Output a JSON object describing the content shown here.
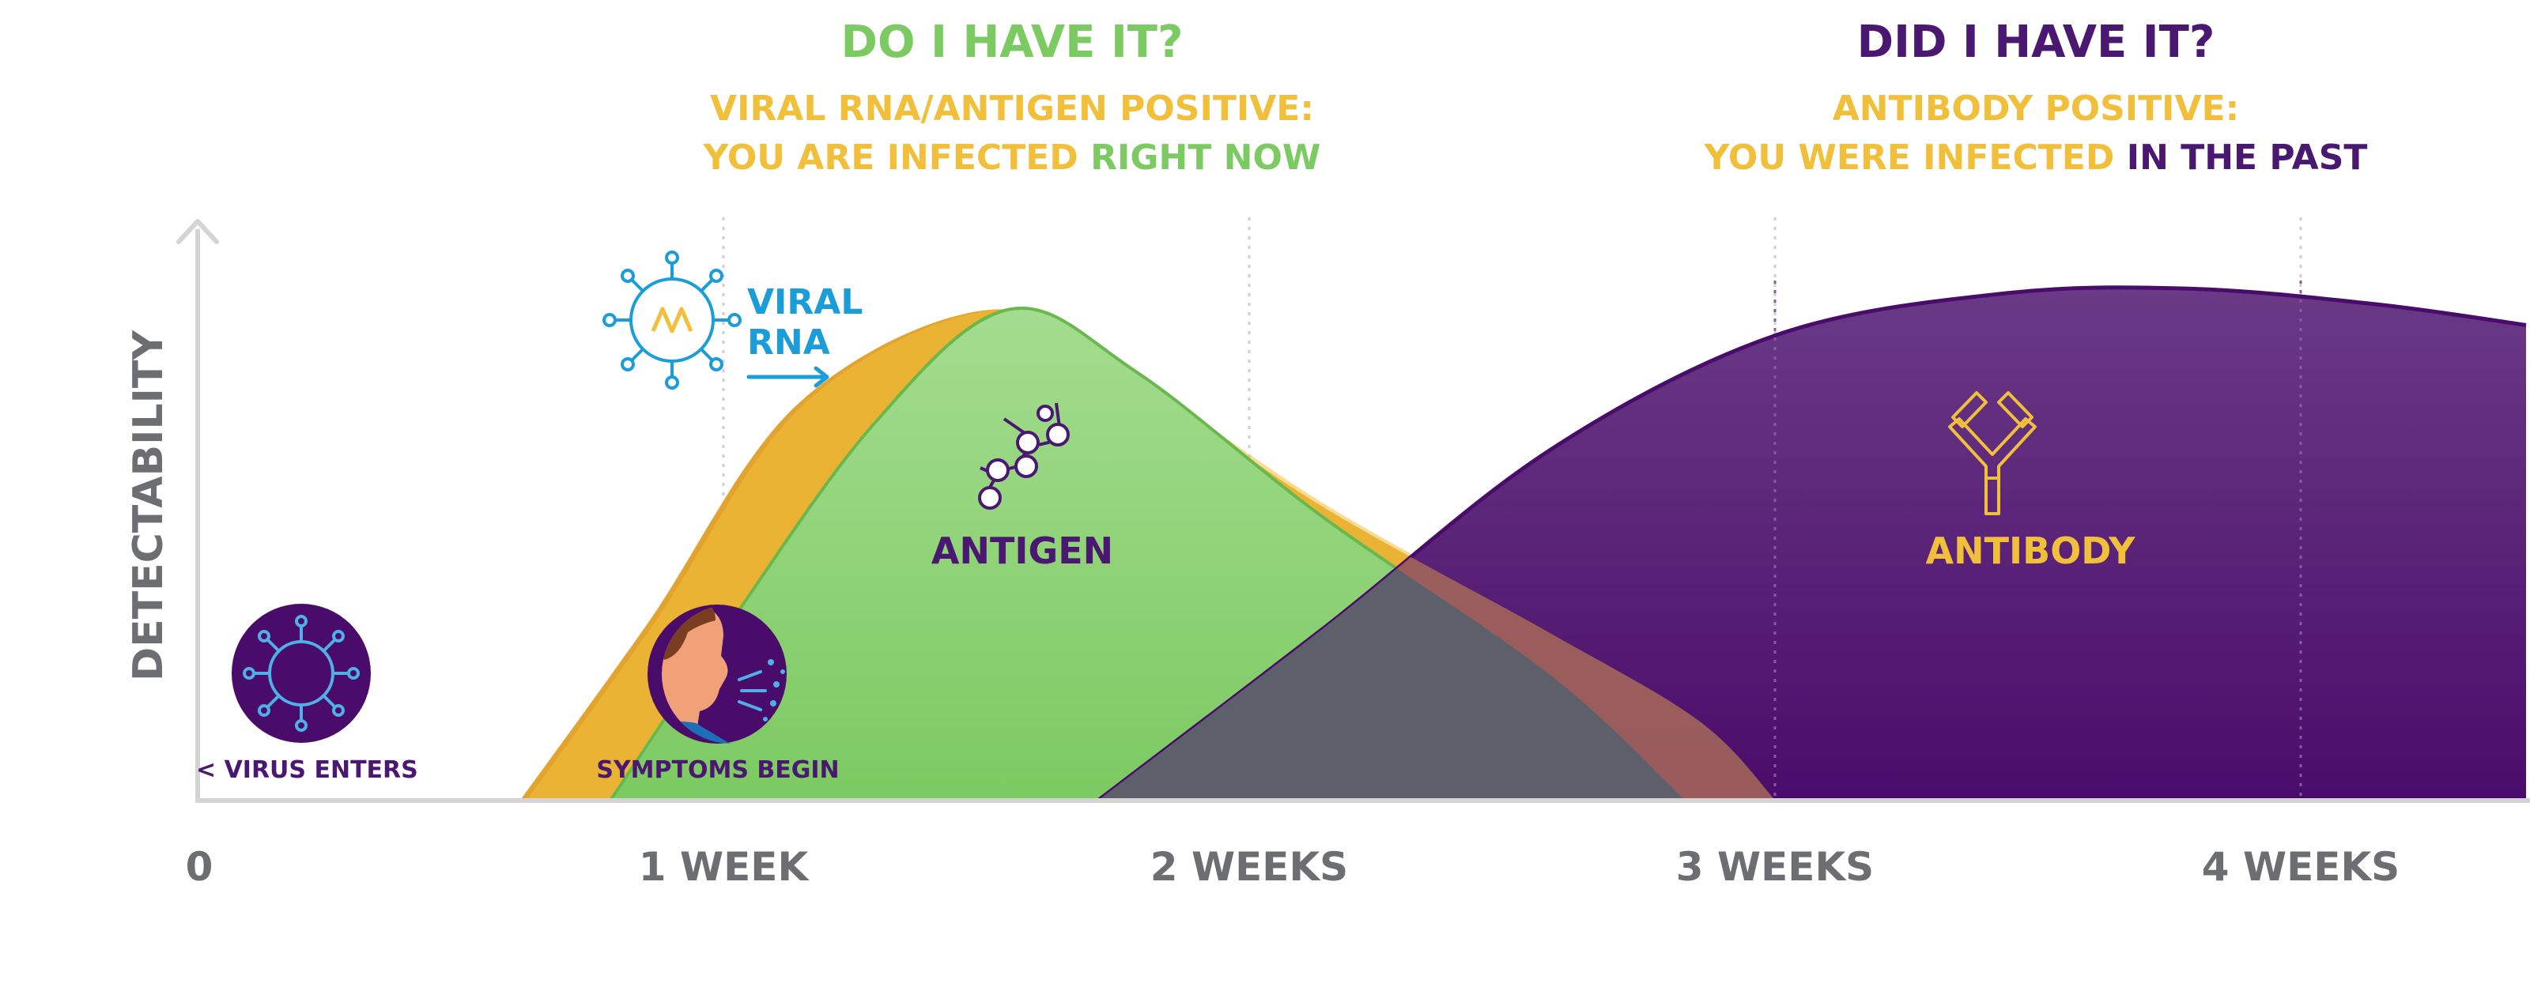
{
  "colors": {
    "green": "#7cca62",
    "green_light": "#a4dc8f",
    "green_edge": "#68b84e",
    "yellow": "#f2bf3a",
    "yellow_dark": "#e2a42e",
    "purple": "#4a0c6a",
    "purple_light": "#6a3a86",
    "purple_text": "#4a1870",
    "blue": "#1b9dd9",
    "gray_axis": "#d4d4d4",
    "gray_text": "#6d6e71",
    "overlap": "#5d5f6b",
    "overlap_tail": "#a2655a"
  },
  "headers": {
    "left_title": "DO I HAVE IT?",
    "left_sub1": "VIRAL RNA/ANTIGEN POSITIVE:",
    "left_sub2a": "YOU ARE INFECTED",
    "left_sub2b": "RIGHT NOW",
    "right_title": "DID I HAVE IT?",
    "right_sub1": "ANTIBODY POSITIVE:",
    "right_sub2a": "YOU WERE INFECTED",
    "right_sub2b": "IN THE PAST"
  },
  "annotations": {
    "virus_enters": "< VIRUS ENTERS",
    "symptoms_begin": "SYMPTOMS BEGIN",
    "viral_rna_line1": "VIRAL",
    "viral_rna_line2": "RNA",
    "antigen": "ANTIGEN",
    "antibody": "ANTIBODY"
  },
  "icons": {
    "virus_badge": "virus-icon",
    "symptoms_badge": "person-coughing-icon",
    "viral_rna": "virus-rna-icon",
    "antigen": "antigen-molecule-icon",
    "antibody": "antibody-y-icon",
    "rna_arrow": "arrow-right-icon"
  },
  "chart_data": {
    "type": "area",
    "ylabel": "DETECTABILITY",
    "xlabel": "",
    "x_ticks": [
      {
        "value": 0,
        "label": "0"
      },
      {
        "value": 7,
        "label": "1 WEEK"
      },
      {
        "value": 14,
        "label": "2 WEEKS"
      },
      {
        "value": 21,
        "label": "3 WEEKS"
      },
      {
        "value": 28,
        "label": "4 WEEKS"
      }
    ],
    "xlim": [
      0,
      31
    ],
    "ylim": [
      0,
      1
    ],
    "gridlines": "vertical dotted at each week",
    "events": [
      {
        "label": "< VIRUS ENTERS",
        "day": 0
      },
      {
        "label": "SYMPTOMS BEGIN",
        "day": 7
      }
    ],
    "series": [
      {
        "name": "VIRAL RNA",
        "points": [
          [
            4.3,
            0
          ],
          [
            6,
            0.34
          ],
          [
            8,
            0.76
          ],
          [
            10.6,
            0.94
          ],
          [
            12.5,
            0.8
          ],
          [
            15,
            0.56
          ],
          [
            18,
            0.32
          ],
          [
            20,
            0.15
          ],
          [
            21,
            0
          ]
        ]
      },
      {
        "name": "ANTIGEN",
        "points": [
          [
            5.5,
            0
          ],
          [
            7,
            0.32
          ],
          [
            9,
            0.72
          ],
          [
            10.8,
            0.94
          ],
          [
            12.5,
            0.82
          ],
          [
            15,
            0.54
          ],
          [
            18,
            0.24
          ],
          [
            19.8,
            0
          ]
        ]
      },
      {
        "name": "ANTIBODY",
        "points": [
          [
            12,
            0
          ],
          [
            15,
            0.33
          ],
          [
            18,
            0.67
          ],
          [
            21,
            0.89
          ],
          [
            24,
            0.97
          ],
          [
            26.5,
            0.98
          ],
          [
            29,
            0.95
          ],
          [
            31,
            0.91
          ]
        ]
      }
    ]
  }
}
